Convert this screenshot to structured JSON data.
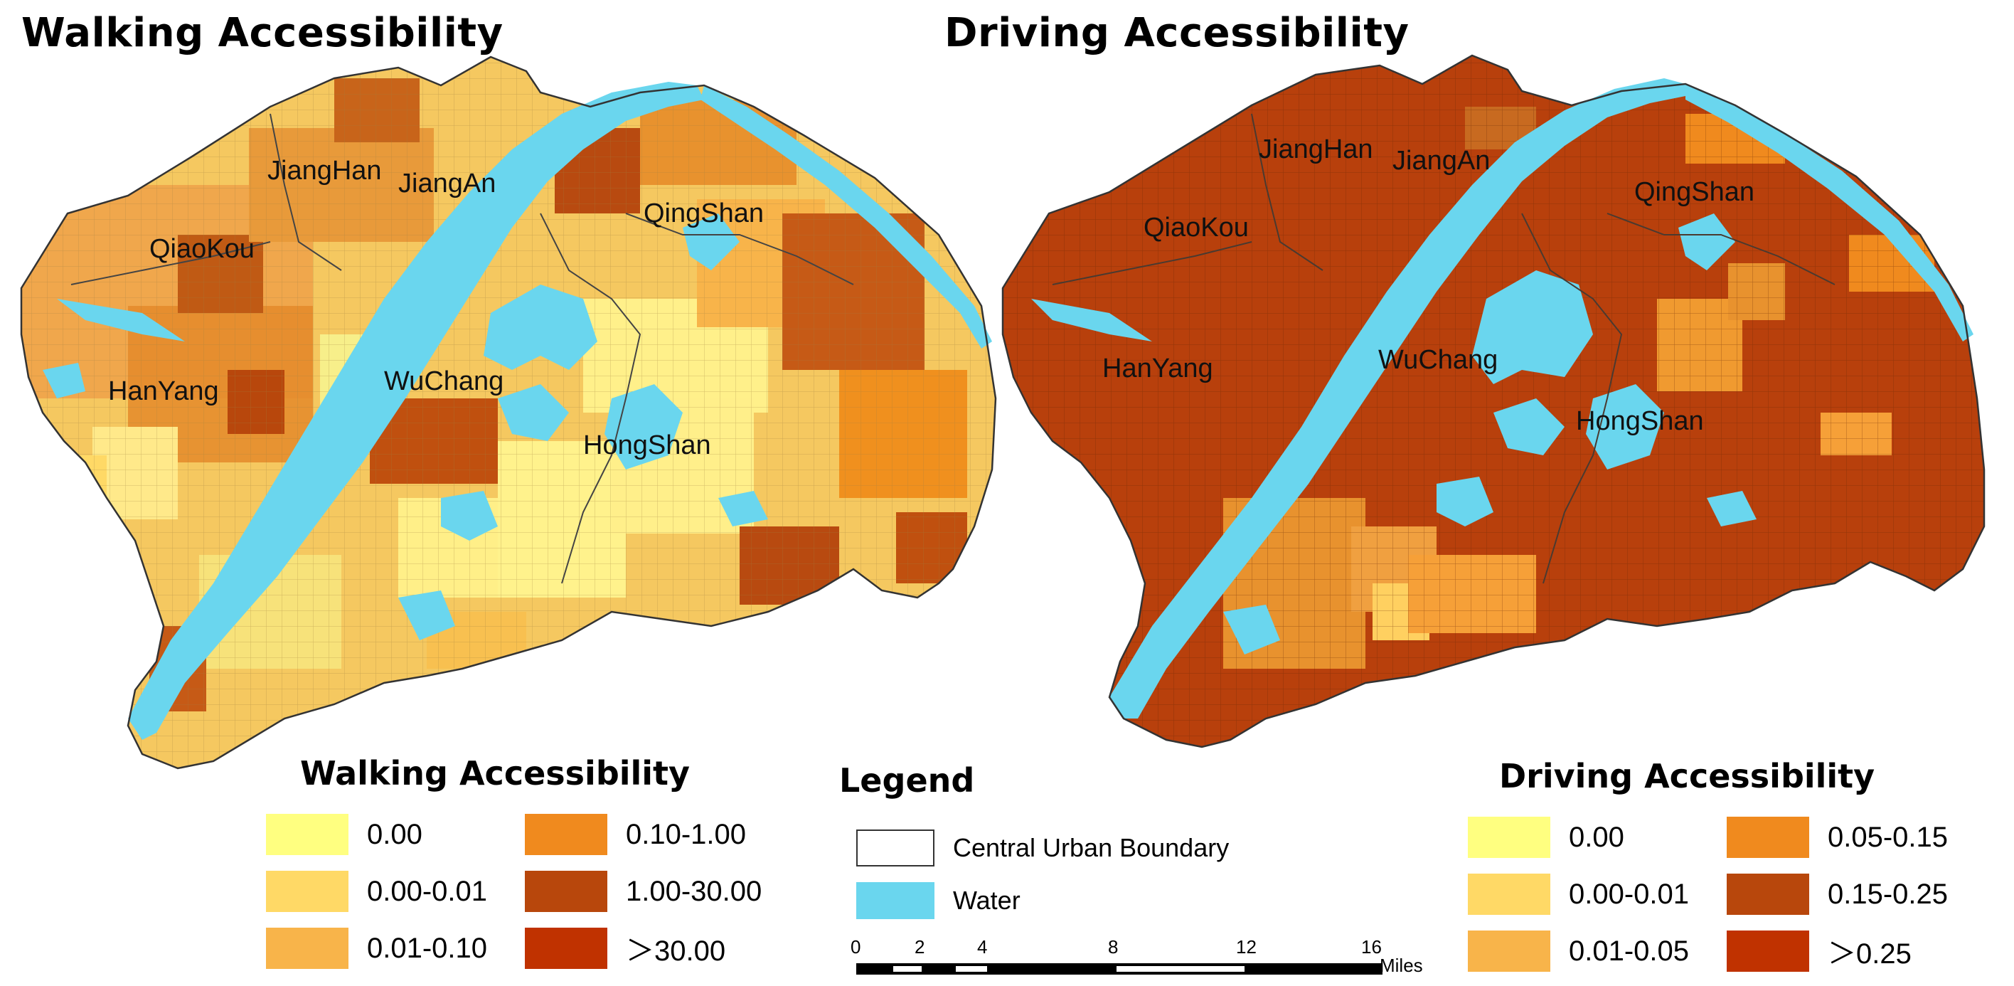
{
  "walking_map": {
    "title": "Walking Accessibility",
    "districts": [
      "JiangHan",
      "JiangAn",
      "QiaoKou",
      "QingShan",
      "HanYang",
      "WuChang",
      "HongShan"
    ]
  },
  "driving_map": {
    "title": "Driving Accessibility",
    "districts": [
      "JiangHan",
      "JiangAn",
      "QiaoKou",
      "QingShan",
      "HanYang",
      "WuChang",
      "HongShan"
    ]
  },
  "walking_legend": {
    "title": "Walking Accessibility",
    "classes": [
      {
        "label": "0.00",
        "color": "#ffff80"
      },
      {
        "label": "0.00-0.01",
        "color": "#ffd966"
      },
      {
        "label": "0.01-0.10",
        "color": "#f8b44a"
      },
      {
        "label": "0.10-1.00",
        "color": "#f08a1e"
      },
      {
        "label": "1.00-30.00",
        "color": "#b8470c"
      },
      {
        "label": "＞30.00",
        "color": "#c03200"
      }
    ]
  },
  "main_legend": {
    "title": "Legend",
    "boundary_label": "Central Urban Boundary",
    "water_label": "Water",
    "water_color": "#6ad6ee",
    "scale_ticks": [
      "0",
      "2",
      "4",
      "8",
      "12",
      "16"
    ],
    "scale_unit": "Miles"
  },
  "driving_legend": {
    "title": "Driving Accessibility",
    "classes": [
      {
        "label": "0.00",
        "color": "#ffff80"
      },
      {
        "label": "0.00-0.01",
        "color": "#ffd966"
      },
      {
        "label": "0.01-0.05",
        "color": "#f8b44a"
      },
      {
        "label": "0.05-0.15",
        "color": "#f08a1e"
      },
      {
        "label": "0.15-0.25",
        "color": "#b8470c"
      },
      {
        "label": "＞0.25",
        "color": "#c03200"
      }
    ]
  }
}
